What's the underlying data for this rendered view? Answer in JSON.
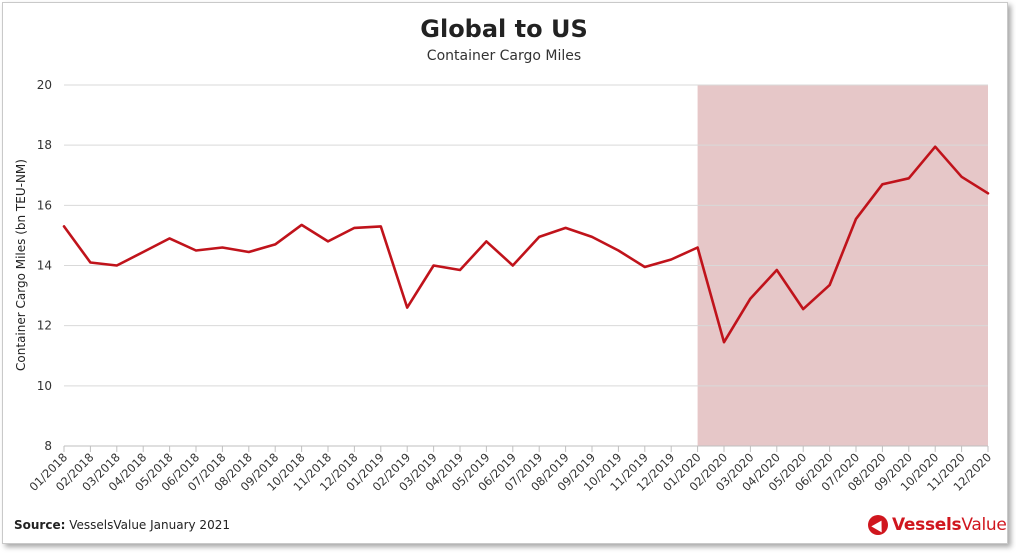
{
  "chart_data": {
    "type": "line",
    "title": "Global to US",
    "subtitle": "Container Cargo Miles",
    "ylabel": "Container Cargo Miles (bn TEU-NM)",
    "xlabel": "",
    "ylim": [
      8,
      20
    ],
    "yticks": [
      8,
      10,
      12,
      14,
      16,
      18,
      20
    ],
    "grid": true,
    "categories": [
      "01/2018",
      "02/2018",
      "03/2018",
      "04/2018",
      "05/2018",
      "06/2018",
      "07/2018",
      "08/2018",
      "09/2018",
      "10/2018",
      "11/2018",
      "12/2018",
      "01/2019",
      "02/2019",
      "03/2019",
      "04/2019",
      "05/2019",
      "06/2019",
      "07/2019",
      "08/2019",
      "09/2019",
      "10/2019",
      "11/2019",
      "12/2019",
      "01/2020",
      "02/2020",
      "03/2020",
      "04/2020",
      "05/2020",
      "06/2020",
      "07/2020",
      "08/2020",
      "09/2020",
      "10/2020",
      "11/2020",
      "12/2020"
    ],
    "series": [
      {
        "values": [
          15.3,
          14.1,
          14.0,
          14.45,
          14.9,
          14.5,
          14.6,
          14.45,
          14.7,
          15.35,
          14.8,
          15.25,
          15.3,
          12.6,
          14.0,
          13.85,
          14.8,
          14.0,
          14.95,
          15.25,
          14.95,
          14.5,
          13.95,
          14.2,
          14.6,
          11.45,
          12.9,
          13.85,
          12.55,
          13.35,
          15.55,
          16.7,
          16.9,
          17.95,
          16.95,
          16.4
        ],
        "color": "#c0131b"
      }
    ],
    "highlight_region": {
      "from": "01/2020",
      "to": "12/2020",
      "color": "#e6c7c8"
    }
  },
  "footer": {
    "source_label": "Source:",
    "source_text": " VesselsValue January 2021",
    "logo_text_bold": "Vessels",
    "logo_text": "Value"
  }
}
